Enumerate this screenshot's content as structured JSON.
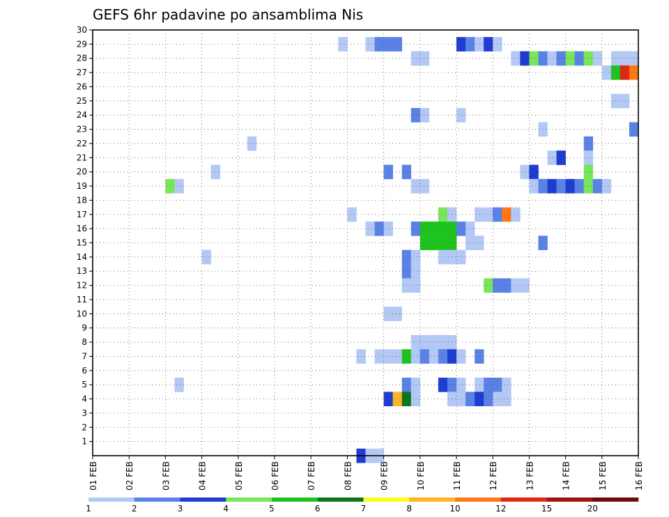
{
  "chart_data": {
    "type": "heatmap",
    "title": "GEFS 6hr padavine po ansamblima Nis",
    "x_ticks": [
      "01 FEB",
      "02 FEB",
      "03 FEB",
      "04 FEB",
      "05 FEB",
      "06 FEB",
      "07 FEB",
      "08 FEB",
      "09 FEB",
      "10 FEB",
      "11 FEB",
      "12 FEB",
      "13 FEB",
      "14 FEB",
      "15 FEB",
      "16 FEB"
    ],
    "y_ticks": [
      "1",
      "2",
      "3",
      "4",
      "5",
      "6",
      "7",
      "8",
      "9",
      "10",
      "11",
      "12",
      "13",
      "14",
      "15",
      "16",
      "17",
      "18",
      "19",
      "20",
      "21",
      "22",
      "23",
      "24",
      "25",
      "26",
      "27",
      "28",
      "29",
      "30"
    ],
    "x_range": [
      "01 FEB",
      "16 FEB"
    ],
    "y_range": [
      0,
      30
    ],
    "time_step_hours": 6,
    "grid": "dotted",
    "legend": {
      "position": "bottom",
      "labels": [
        "1",
        "2",
        "3",
        "4",
        "5",
        "6",
        "7",
        "8",
        "10",
        "12",
        "15",
        "20"
      ],
      "colors": [
        "#b4c8f5",
        "#5a82e6",
        "#1e3cd2",
        "#78e65a",
        "#1ec31e",
        "#0a7818",
        "#ffff1e",
        "#ffb428",
        "#ff7814",
        "#dc2814",
        "#a01414",
        "#6e0a0a"
      ]
    },
    "cells": [
      {
        "m": 29,
        "d": "07 FEB",
        "h": 18,
        "c": 1
      },
      {
        "m": 29,
        "d": "08 FEB",
        "h": 12,
        "c": 1
      },
      {
        "m": 29,
        "d": "08 FEB",
        "h": 18,
        "c": 2
      },
      {
        "m": 29,
        "d": "09 FEB",
        "h": 0,
        "c": 2
      },
      {
        "m": 29,
        "d": "09 FEB",
        "h": 6,
        "c": 2
      },
      {
        "m": 29,
        "d": "11 FEB",
        "h": 0,
        "c": 3
      },
      {
        "m": 29,
        "d": "11 FEB",
        "h": 6,
        "c": 2
      },
      {
        "m": 29,
        "d": "11 FEB",
        "h": 12,
        "c": 1
      },
      {
        "m": 29,
        "d": "11 FEB",
        "h": 18,
        "c": 3
      },
      {
        "m": 29,
        "d": "12 FEB",
        "h": 0,
        "c": 1
      },
      {
        "m": 28,
        "d": "09 FEB",
        "h": 18,
        "c": 1
      },
      {
        "m": 28,
        "d": "10 FEB",
        "h": 0,
        "c": 1
      },
      {
        "m": 28,
        "d": "12 FEB",
        "h": 12,
        "c": 1
      },
      {
        "m": 28,
        "d": "12 FEB",
        "h": 18,
        "c": 3
      },
      {
        "m": 28,
        "d": "13 FEB",
        "h": 0,
        "c": 4
      },
      {
        "m": 28,
        "d": "13 FEB",
        "h": 6,
        "c": 2
      },
      {
        "m": 28,
        "d": "13 FEB",
        "h": 12,
        "c": 1
      },
      {
        "m": 28,
        "d": "13 FEB",
        "h": 18,
        "c": 2
      },
      {
        "m": 28,
        "d": "14 FEB",
        "h": 0,
        "c": 4
      },
      {
        "m": 28,
        "d": "14 FEB",
        "h": 6,
        "c": 2
      },
      {
        "m": 28,
        "d": "14 FEB",
        "h": 12,
        "c": 4
      },
      {
        "m": 28,
        "d": "14 FEB",
        "h": 18,
        "c": 1
      },
      {
        "m": 28,
        "d": "15 FEB",
        "h": 6,
        "c": 1
      },
      {
        "m": 28,
        "d": "15 FEB",
        "h": 12,
        "c": 1
      },
      {
        "m": 28,
        "d": "15 FEB",
        "h": 18,
        "c": 1
      },
      {
        "m": 27,
        "d": "15 FEB",
        "h": 0,
        "c": 1
      },
      {
        "m": 27,
        "d": "15 FEB",
        "h": 6,
        "c": 5
      },
      {
        "m": 27,
        "d": "15 FEB",
        "h": 12,
        "c": 10
      },
      {
        "m": 27,
        "d": "15 FEB",
        "h": 18,
        "c": 9
      },
      {
        "m": 25,
        "d": "15 FEB",
        "h": 6,
        "c": 1
      },
      {
        "m": 25,
        "d": "15 FEB",
        "h": 12,
        "c": 1
      },
      {
        "m": 24,
        "d": "09 FEB",
        "h": 18,
        "c": 2
      },
      {
        "m": 24,
        "d": "10 FEB",
        "h": 0,
        "c": 1
      },
      {
        "m": 24,
        "d": "11 FEB",
        "h": 0,
        "c": 1
      },
      {
        "m": 23,
        "d": "13 FEB",
        "h": 6,
        "c": 1
      },
      {
        "m": 23,
        "d": "15 FEB",
        "h": 18,
        "c": 2
      },
      {
        "m": 22,
        "d": "05 FEB",
        "h": 6,
        "c": 1
      },
      {
        "m": 22,
        "d": "14 FEB",
        "h": 12,
        "c": 2
      },
      {
        "m": 21,
        "d": "13 FEB",
        "h": 12,
        "c": 1
      },
      {
        "m": 21,
        "d": "13 FEB",
        "h": 18,
        "c": 3
      },
      {
        "m": 21,
        "d": "14 FEB",
        "h": 12,
        "c": 1
      },
      {
        "m": 20,
        "d": "04 FEB",
        "h": 6,
        "c": 1
      },
      {
        "m": 20,
        "d": "09 FEB",
        "h": 0,
        "c": 2
      },
      {
        "m": 20,
        "d": "09 FEB",
        "h": 12,
        "c": 2
      },
      {
        "m": 20,
        "d": "12 FEB",
        "h": 18,
        "c": 1
      },
      {
        "m": 20,
        "d": "13 FEB",
        "h": 0,
        "c": 3
      },
      {
        "m": 20,
        "d": "14 FEB",
        "h": 12,
        "c": 4
      },
      {
        "m": 19,
        "d": "03 FEB",
        "h": 0,
        "c": 4
      },
      {
        "m": 19,
        "d": "03 FEB",
        "h": 6,
        "c": 1
      },
      {
        "m": 19,
        "d": "09 FEB",
        "h": 18,
        "c": 1
      },
      {
        "m": 19,
        "d": "10 FEB",
        "h": 0,
        "c": 1
      },
      {
        "m": 19,
        "d": "13 FEB",
        "h": 0,
        "c": 1
      },
      {
        "m": 19,
        "d": "13 FEB",
        "h": 6,
        "c": 2
      },
      {
        "m": 19,
        "d": "13 FEB",
        "h": 12,
        "c": 3
      },
      {
        "m": 19,
        "d": "13 FEB",
        "h": 18,
        "c": 2
      },
      {
        "m": 19,
        "d": "14 FEB",
        "h": 0,
        "c": 3
      },
      {
        "m": 19,
        "d": "14 FEB",
        "h": 6,
        "c": 2
      },
      {
        "m": 19,
        "d": "14 FEB",
        "h": 12,
        "c": 4
      },
      {
        "m": 19,
        "d": "14 FEB",
        "h": 18,
        "c": 2
      },
      {
        "m": 19,
        "d": "15 FEB",
        "h": 0,
        "c": 1
      },
      {
        "m": 17,
        "d": "08 FEB",
        "h": 0,
        "c": 1
      },
      {
        "m": 17,
        "d": "10 FEB",
        "h": 12,
        "c": 4
      },
      {
        "m": 17,
        "d": "10 FEB",
        "h": 18,
        "c": 1
      },
      {
        "m": 17,
        "d": "11 FEB",
        "h": 12,
        "c": 1
      },
      {
        "m": 17,
        "d": "11 FEB",
        "h": 18,
        "c": 1
      },
      {
        "m": 17,
        "d": "12 FEB",
        "h": 0,
        "c": 2
      },
      {
        "m": 17,
        "d": "12 FEB",
        "h": 6,
        "c": 9
      },
      {
        "m": 17,
        "d": "12 FEB",
        "h": 12,
        "c": 1
      },
      {
        "m": 16,
        "d": "08 FEB",
        "h": 12,
        "c": 1
      },
      {
        "m": 16,
        "d": "08 FEB",
        "h": 18,
        "c": 2
      },
      {
        "m": 16,
        "d": "09 FEB",
        "h": 0,
        "c": 1
      },
      {
        "m": 16,
        "d": "09 FEB",
        "h": 18,
        "c": 2
      },
      {
        "m": 16,
        "d": "10 FEB",
        "h": 0,
        "c": 5
      },
      {
        "m": 16,
        "d": "10 FEB",
        "h": 6,
        "c": 5
      },
      {
        "m": 16,
        "d": "10 FEB",
        "h": 12,
        "c": 5
      },
      {
        "m": 16,
        "d": "10 FEB",
        "h": 18,
        "c": 5
      },
      {
        "m": 16,
        "d": "11 FEB",
        "h": 0,
        "c": 2
      },
      {
        "m": 16,
        "d": "11 FEB",
        "h": 6,
        "c": 1
      },
      {
        "m": 15,
        "d": "10 FEB",
        "h": 0,
        "c": 5
      },
      {
        "m": 15,
        "d": "10 FEB",
        "h": 6,
        "c": 5
      },
      {
        "m": 15,
        "d": "10 FEB",
        "h": 12,
        "c": 5
      },
      {
        "m": 15,
        "d": "10 FEB",
        "h": 18,
        "c": 5
      },
      {
        "m": 15,
        "d": "11 FEB",
        "h": 6,
        "c": 1
      },
      {
        "m": 15,
        "d": "11 FEB",
        "h": 12,
        "c": 1
      },
      {
        "m": 15,
        "d": "13 FEB",
        "h": 6,
        "c": 2
      },
      {
        "m": 14,
        "d": "04 FEB",
        "h": 0,
        "c": 1
      },
      {
        "m": 14,
        "d": "09 FEB",
        "h": 12,
        "c": 2
      },
      {
        "m": 14,
        "d": "09 FEB",
        "h": 18,
        "c": 1
      },
      {
        "m": 14,
        "d": "10 FEB",
        "h": 12,
        "c": 1
      },
      {
        "m": 14,
        "d": "10 FEB",
        "h": 18,
        "c": 1
      },
      {
        "m": 14,
        "d": "11 FEB",
        "h": 0,
        "c": 1
      },
      {
        "m": 13,
        "d": "09 FEB",
        "h": 12,
        "c": 2
      },
      {
        "m": 13,
        "d": "09 FEB",
        "h": 18,
        "c": 1
      },
      {
        "m": 12,
        "d": "09 FEB",
        "h": 12,
        "c": 1
      },
      {
        "m": 12,
        "d": "09 FEB",
        "h": 18,
        "c": 1
      },
      {
        "m": 12,
        "d": "11 FEB",
        "h": 18,
        "c": 4
      },
      {
        "m": 12,
        "d": "12 FEB",
        "h": 0,
        "c": 2
      },
      {
        "m": 12,
        "d": "12 FEB",
        "h": 6,
        "c": 2
      },
      {
        "m": 12,
        "d": "12 FEB",
        "h": 12,
        "c": 1
      },
      {
        "m": 12,
        "d": "12 FEB",
        "h": 18,
        "c": 1
      },
      {
        "m": 10,
        "d": "09 FEB",
        "h": 0,
        "c": 1
      },
      {
        "m": 10,
        "d": "09 FEB",
        "h": 6,
        "c": 1
      },
      {
        "m": 8,
        "d": "09 FEB",
        "h": 18,
        "c": 1
      },
      {
        "m": 8,
        "d": "10 FEB",
        "h": 0,
        "c": 1
      },
      {
        "m": 8,
        "d": "10 FEB",
        "h": 6,
        "c": 1
      },
      {
        "m": 8,
        "d": "10 FEB",
        "h": 12,
        "c": 1
      },
      {
        "m": 8,
        "d": "10 FEB",
        "h": 18,
        "c": 1
      },
      {
        "m": 7,
        "d": "08 FEB",
        "h": 6,
        "c": 1
      },
      {
        "m": 7,
        "d": "08 FEB",
        "h": 18,
        "c": 1
      },
      {
        "m": 7,
        "d": "09 FEB",
        "h": 0,
        "c": 1
      },
      {
        "m": 7,
        "d": "09 FEB",
        "h": 6,
        "c": 1
      },
      {
        "m": 7,
        "d": "09 FEB",
        "h": 12,
        "c": 5
      },
      {
        "m": 7,
        "d": "09 FEB",
        "h": 18,
        "c": 1
      },
      {
        "m": 7,
        "d": "10 FEB",
        "h": 0,
        "c": 2
      },
      {
        "m": 7,
        "d": "10 FEB",
        "h": 6,
        "c": 1
      },
      {
        "m": 7,
        "d": "10 FEB",
        "h": 12,
        "c": 2
      },
      {
        "m": 7,
        "d": "10 FEB",
        "h": 18,
        "c": 3
      },
      {
        "m": 7,
        "d": "11 FEB",
        "h": 0,
        "c": 1
      },
      {
        "m": 7,
        "d": "11 FEB",
        "h": 12,
        "c": 2
      },
      {
        "m": 5,
        "d": "03 FEB",
        "h": 6,
        "c": 1
      },
      {
        "m": 5,
        "d": "09 FEB",
        "h": 12,
        "c": 2
      },
      {
        "m": 5,
        "d": "09 FEB",
        "h": 18,
        "c": 1
      },
      {
        "m": 5,
        "d": "10 FEB",
        "h": 12,
        "c": 3
      },
      {
        "m": 5,
        "d": "10 FEB",
        "h": 18,
        "c": 2
      },
      {
        "m": 5,
        "d": "11 FEB",
        "h": 0,
        "c": 1
      },
      {
        "m": 5,
        "d": "11 FEB",
        "h": 12,
        "c": 1
      },
      {
        "m": 5,
        "d": "11 FEB",
        "h": 18,
        "c": 2
      },
      {
        "m": 5,
        "d": "12 FEB",
        "h": 0,
        "c": 2
      },
      {
        "m": 5,
        "d": "12 FEB",
        "h": 6,
        "c": 1
      },
      {
        "m": 4,
        "d": "09 FEB",
        "h": 0,
        "c": 3
      },
      {
        "m": 4,
        "d": "09 FEB",
        "h": 6,
        "c": 8
      },
      {
        "m": 4,
        "d": "09 FEB",
        "h": 12,
        "c": 6
      },
      {
        "m": 4,
        "d": "09 FEB",
        "h": 18,
        "c": 1
      },
      {
        "m": 4,
        "d": "10 FEB",
        "h": 18,
        "c": 1
      },
      {
        "m": 4,
        "d": "11 FEB",
        "h": 0,
        "c": 1
      },
      {
        "m": 4,
        "d": "11 FEB",
        "h": 6,
        "c": 2
      },
      {
        "m": 4,
        "d": "11 FEB",
        "h": 12,
        "c": 3
      },
      {
        "m": 4,
        "d": "11 FEB",
        "h": 18,
        "c": 2
      },
      {
        "m": 4,
        "d": "12 FEB",
        "h": 0,
        "c": 1
      },
      {
        "m": 4,
        "d": "12 FEB",
        "h": 6,
        "c": 1
      },
      {
        "m": 0,
        "d": "08 FEB",
        "h": 6,
        "c": 3
      },
      {
        "m": 0,
        "d": "08 FEB",
        "h": 12,
        "c": 1
      },
      {
        "m": 0,
        "d": "08 FEB",
        "h": 18,
        "c": 1
      }
    ]
  }
}
